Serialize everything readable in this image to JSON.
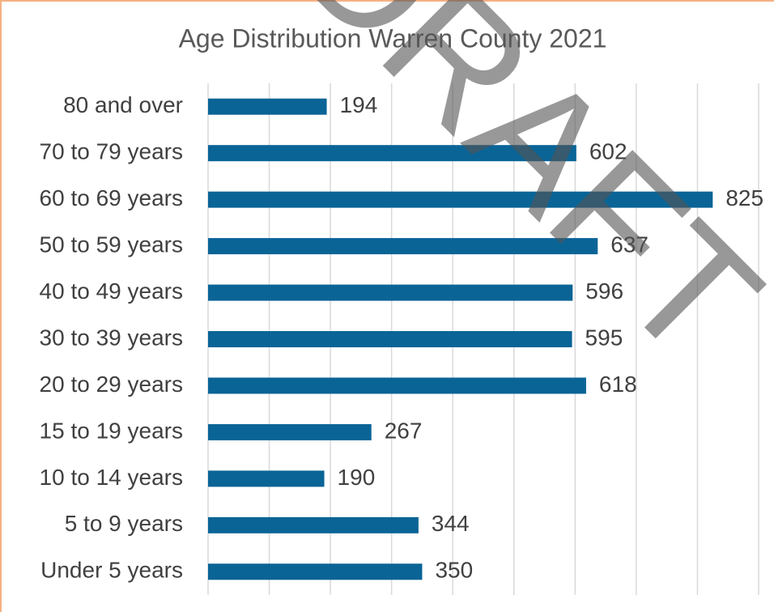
{
  "chart_data": {
    "type": "bar",
    "orientation": "horizontal",
    "title": "Age Distribution Warren County 2021",
    "categories": [
      "Under 5 years",
      "5 to 9 years",
      "10 to 14 years",
      "15 to 19 years",
      "20 to 29 years",
      "30 to 39 years",
      "40 to 49 years",
      "50 to 59 years",
      "60 to 69 years",
      "70 to 79 years",
      "80 and over"
    ],
    "values": [
      350,
      344,
      190,
      267,
      618,
      595,
      596,
      637,
      825,
      602,
      194
    ],
    "color": "#0a6496",
    "xlim": [
      0,
      900
    ],
    "xticks": [
      0,
      100,
      200,
      300,
      400,
      500,
      600,
      700,
      800,
      900
    ],
    "grid": true,
    "watermark": "DRAFT"
  }
}
